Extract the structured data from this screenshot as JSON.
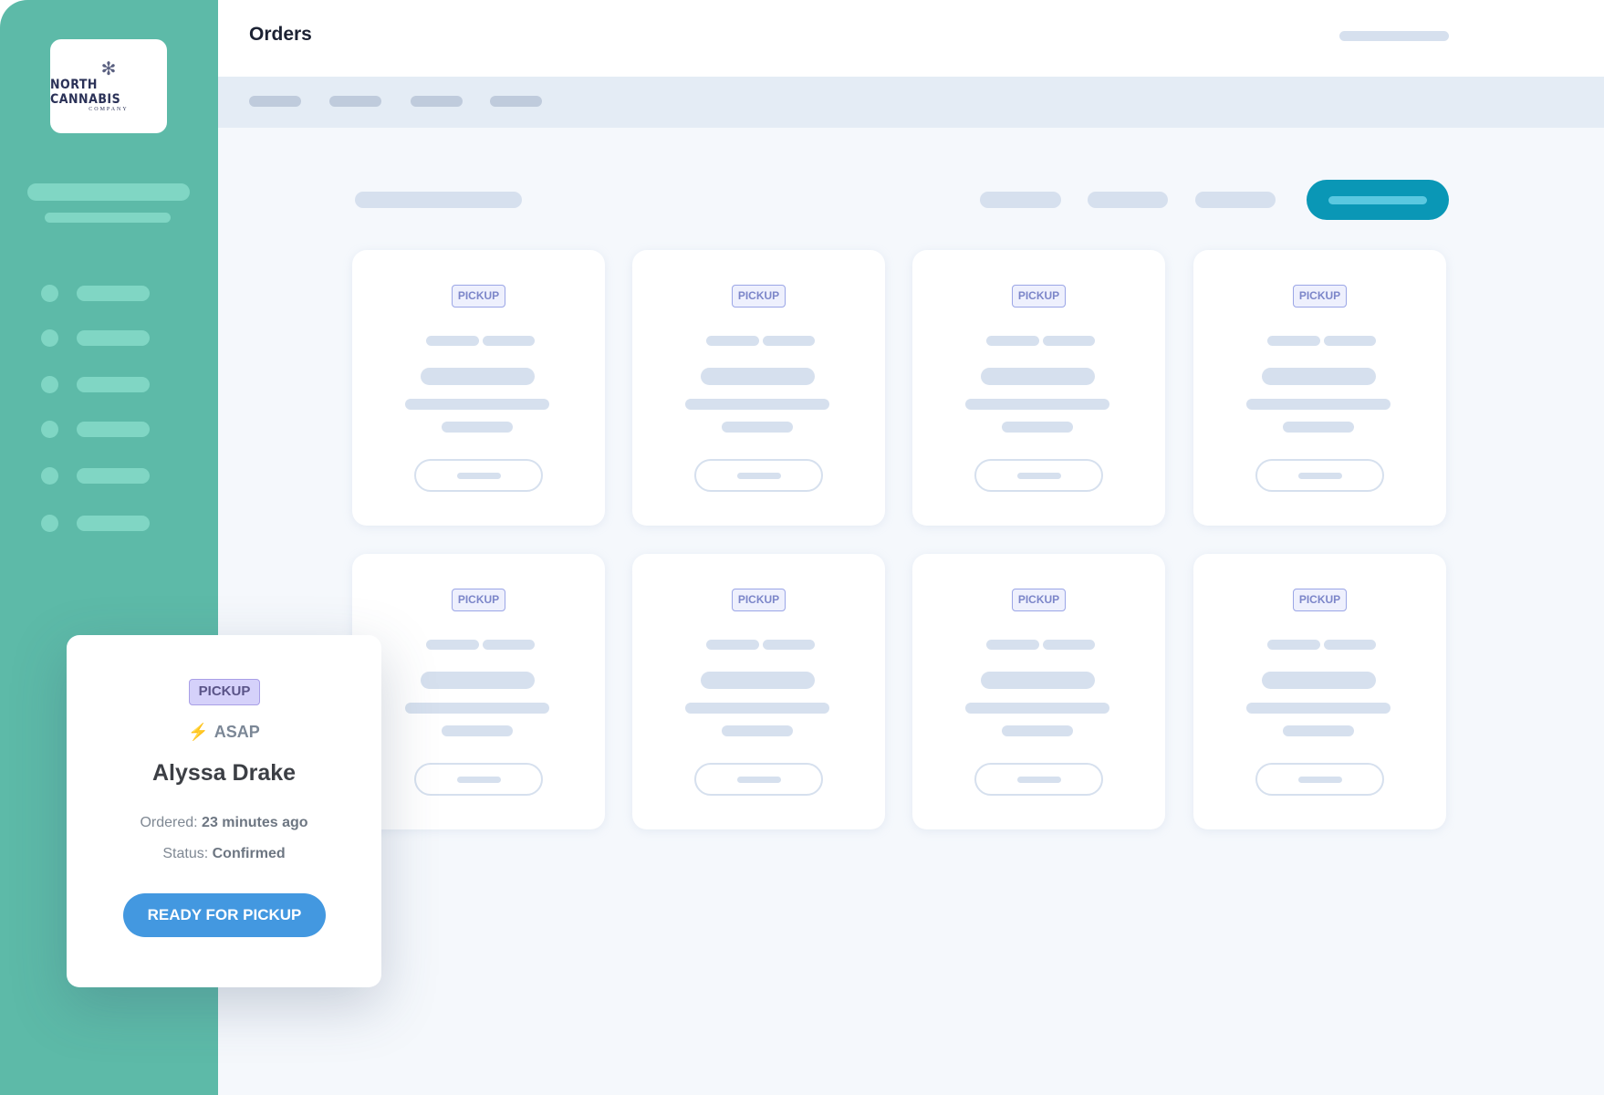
{
  "sidebar": {
    "logo": {
      "brand": "NORTH CANNABIS",
      "sub": "COMPANY"
    },
    "nav_item_count": 6,
    "accent": "#5dbaa8"
  },
  "header": {
    "title": "Orders"
  },
  "orders_grid": {
    "cards": [
      {
        "badge": "PICKUP"
      },
      {
        "badge": "PICKUP"
      },
      {
        "badge": "PICKUP"
      },
      {
        "badge": "PICKUP"
      },
      {
        "badge": "PICKUP"
      },
      {
        "badge": "PICKUP"
      },
      {
        "badge": "PICKUP"
      },
      {
        "badge": "PICKUP"
      }
    ]
  },
  "featured_order": {
    "badge": "PICKUP",
    "timing_icon": "lightning-bolt-icon",
    "timing": "ASAP",
    "customer": "Alyssa Drake",
    "ordered_label": "Ordered:",
    "ordered_value": "23 minutes ago",
    "status_label": "Status:",
    "status_value": "Confirmed",
    "action": "READY FOR PICKUP",
    "action_color": "#4398e0"
  }
}
